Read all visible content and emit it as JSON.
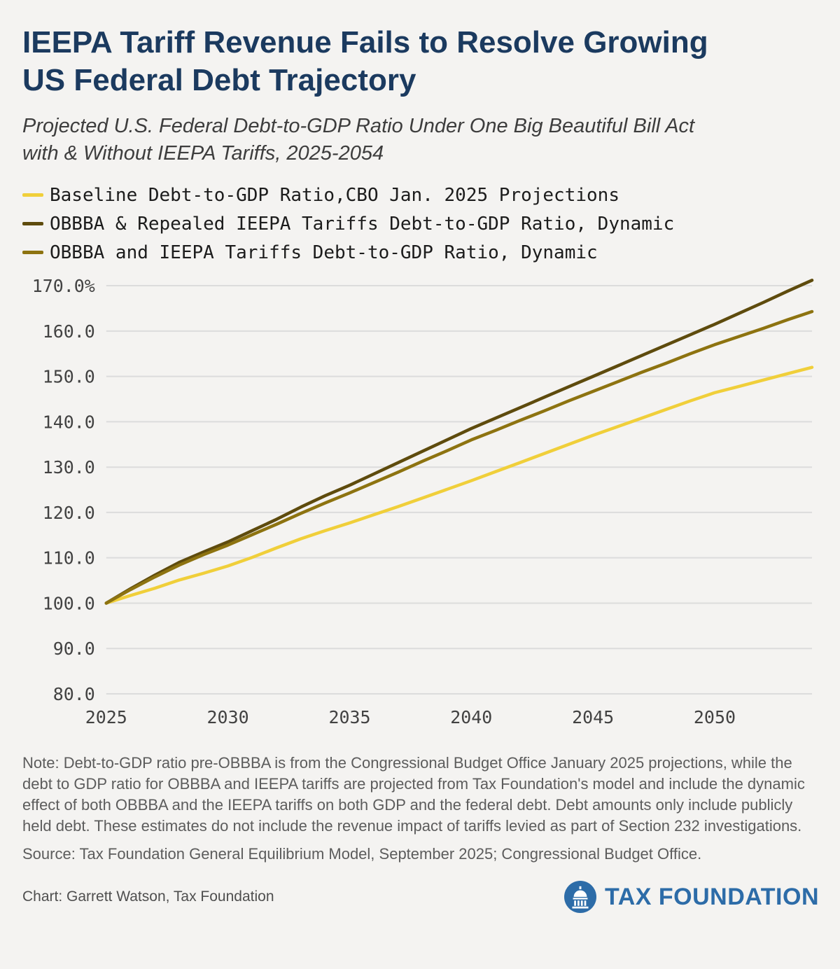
{
  "header": {
    "title_line1": "IEEPA Tariff Revenue Fails to Resolve Growing",
    "title_line2": "US Federal Debt Trajectory",
    "subtitle_line1": "Projected U.S. Federal Debt-to-GDP Ratio Under One Big Beautiful Bill Act",
    "subtitle_line2": "with & Without IEEPA Tariffs, 2025-2054"
  },
  "chart_data": {
    "type": "line",
    "title": "IEEPA Tariff Revenue Fails to Resolve Growing US Federal Debt Trajectory",
    "subtitle": "Projected U.S. Federal Debt-to-GDP Ratio Under One Big Beautiful Bill Act with & Without IEEPA Tariffs, 2025-2054",
    "xlabel": "",
    "ylabel": "",
    "grid": true,
    "grid_color": "#dcdcdc",
    "legend_position": "top-left",
    "xlim": [
      2025,
      2054
    ],
    "ylim": [
      80,
      170
    ],
    "x": [
      2025,
      2026,
      2027,
      2028,
      2029,
      2030,
      2031,
      2032,
      2033,
      2034,
      2035,
      2036,
      2037,
      2038,
      2039,
      2040,
      2041,
      2042,
      2043,
      2044,
      2045,
      2046,
      2047,
      2048,
      2049,
      2050,
      2051,
      2052,
      2053,
      2054
    ],
    "xticks": [
      {
        "v": 2025,
        "label": "2025"
      },
      {
        "v": 2030,
        "label": "2030"
      },
      {
        "v": 2035,
        "label": "2035"
      },
      {
        "v": 2040,
        "label": "2040"
      },
      {
        "v": 2045,
        "label": "2045"
      },
      {
        "v": 2050,
        "label": "2050"
      }
    ],
    "yticks": [
      {
        "v": 170,
        "label": "170.0%"
      },
      {
        "v": 160,
        "label": "160.0"
      },
      {
        "v": 150,
        "label": "150.0"
      },
      {
        "v": 140,
        "label": "140.0"
      },
      {
        "v": 130,
        "label": "130.0"
      },
      {
        "v": 120,
        "label": "120.0"
      },
      {
        "v": 110,
        "label": "110.0"
      },
      {
        "v": 100,
        "label": "100.0"
      },
      {
        "v": 90,
        "label": "90.0"
      },
      {
        "v": 80,
        "label": "80.0"
      }
    ],
    "series": [
      {
        "id": "baseline",
        "name": "Baseline Debt-to-GDP Ratio,CBO Jan. 2025 Projections",
        "color": "#f0cf3a",
        "values": [
          100.0,
          101.7,
          103.3,
          105.1,
          106.6,
          108.2,
          110.1,
          112.2,
          114.2,
          116.0,
          117.7,
          119.5,
          121.3,
          123.2,
          125.1,
          127.0,
          129.0,
          131.0,
          133.0,
          135.0,
          137.0,
          138.9,
          140.8,
          142.7,
          144.6,
          146.4,
          147.8,
          149.2,
          150.6,
          152.0
        ]
      },
      {
        "id": "obbba-repealed-ieepa",
        "name": "OBBBA & Repealed IEEPA Tariffs Debt-to-GDP Ratio, Dynamic",
        "color": "#5e4b0d",
        "values": [
          100.0,
          103.2,
          106.2,
          109.0,
          111.3,
          113.5,
          116.0,
          118.5,
          121.2,
          123.7,
          126.0,
          128.5,
          131.0,
          133.5,
          136.0,
          138.5,
          140.8,
          143.1,
          145.4,
          147.7,
          150.0,
          152.3,
          154.6,
          156.9,
          159.2,
          161.5,
          163.9,
          166.3,
          168.8,
          171.2
        ]
      },
      {
        "id": "obbba-ieepa",
        "name": "OBBBA and IEEPA Tariffs Debt-to-GDP Ratio, Dynamic",
        "color": "#8d7310",
        "values": [
          100.0,
          103.0,
          105.8,
          108.4,
          110.7,
          112.8,
          115.1,
          117.4,
          119.8,
          122.1,
          124.3,
          126.6,
          128.9,
          131.3,
          133.6,
          136.0,
          138.1,
          140.3,
          142.4,
          144.6,
          146.7,
          148.8,
          150.9,
          152.9,
          155.0,
          157.0,
          158.8,
          160.6,
          162.5,
          164.3
        ]
      }
    ]
  },
  "footer": {
    "note": "Note: Debt-to-GDP ratio pre-OBBBA is from the Congressional Budget Office January 2025 projections, while the debt to GDP ratio for OBBBA and IEEPA tariffs are projected from Tax Foundation's model and include the dynamic effect of both OBBBA and the IEEPA tariffs on both GDP and the federal debt. Debt amounts only include publicly held debt. These estimates do not include the revenue impact of tariffs levied as part of Section 232 investigations.",
    "source": "Source: Tax Foundation General Equilibrium Model, September 2025; Congressional Budget Office.",
    "credit": "Chart: Garrett Watson, Tax Foundation",
    "logo_text": "TAX FOUNDATION"
  },
  "colors": {
    "title_navy": "#1b3a5f",
    "background": "#f4f3f1",
    "logo_blue": "#2d6ca8",
    "baseline_yellow": "#f0cf3a",
    "repealed_dark_olive": "#5e4b0d",
    "tariffs_olive": "#8d7310"
  }
}
